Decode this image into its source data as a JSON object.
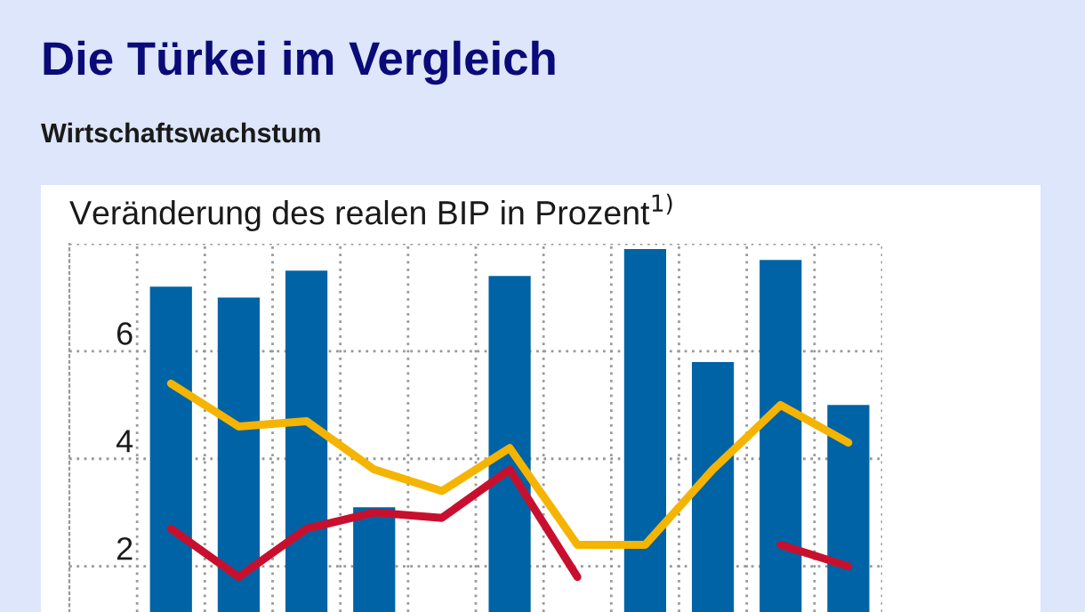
{
  "chart_data": {
    "type": "bar",
    "title": "Die Türkei im Vergleich",
    "subtitle": "Wirtschaftswachstum",
    "ylabel": "Veränderung des realen BIP in Prozent$^{1)}$",
    "categories": [
      null,
      null,
      null,
      null,
      null,
      null,
      null,
      null,
      null,
      null,
      null
    ],
    "series": [
      {
        "color": "#0063a6",
        "values": [
          7.2,
          7.0,
          7.5,
          3.1,
          null,
          7.4,
          null,
          7.9,
          5.8,
          7.7,
          5.0
        ]
      },
      {
        "type": "line",
        "color": "#f5b400",
        "values": [
          5.4,
          4.6,
          4.7,
          3.8,
          3.4,
          4.2,
          2.4,
          2.4,
          3.8,
          5.0,
          4.3
        ]
      },
      {
        "type": "line",
        "color": "#c8102e",
        "values": [
          2.7,
          1.8,
          2.7,
          3.0,
          2.9,
          3.8,
          1.8,
          null,
          null,
          2.4,
          2.0
        ]
      }
    ],
    "ylim": [
      1.15,
      8
    ],
    "yticks": [
      2,
      4,
      6,
      {
        "value": 8,
        "label": null
      }
    ],
    "grid": true,
    "line_style": "solid",
    "marker": "none"
  }
}
